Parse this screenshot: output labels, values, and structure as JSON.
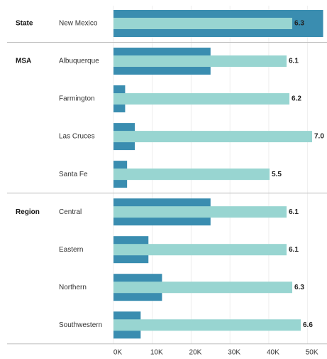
{
  "chart_data": {
    "type": "bar",
    "categories": [
      "New Mexico",
      "Albuquerque",
      "Farmington",
      "Las Cruces",
      "Santa Fe",
      "Central",
      "Eastern",
      "Northern",
      "Southwestern"
    ],
    "group_labels": [
      "State",
      "MSA",
      null,
      null,
      null,
      "Region",
      null,
      null,
      null
    ],
    "series": [
      {
        "color": "#3a8db0",
        "values": [
          54000,
          25000,
          3000,
          5500,
          3500,
          25000,
          9000,
          12500,
          7000
        ]
      },
      {
        "color": "#98d5d1",
        "axis": "x2",
        "values": [
          6.3,
          6.1,
          6.2,
          7.0,
          5.5,
          6.1,
          6.1,
          6.3,
          6.6
        ],
        "value_labels": [
          "6.3",
          "6.1",
          "6.2",
          "7.0",
          "5.5",
          "6.1",
          "6.1",
          "6.3",
          "6.6"
        ]
      }
    ],
    "xlim": [
      0,
      55000
    ],
    "xticks": [
      {
        "value": 0,
        "label": "0K"
      },
      {
        "value": 10000,
        "label": "10K"
      },
      {
        "value": 20000,
        "label": "20K"
      },
      {
        "value": 30000,
        "label": "30K"
      },
      {
        "value": 40000,
        "label": "40K"
      },
      {
        "value": 50000,
        "label": "50K"
      }
    ],
    "x2lim": [
      0,
      7.5
    ],
    "grid": true
  }
}
